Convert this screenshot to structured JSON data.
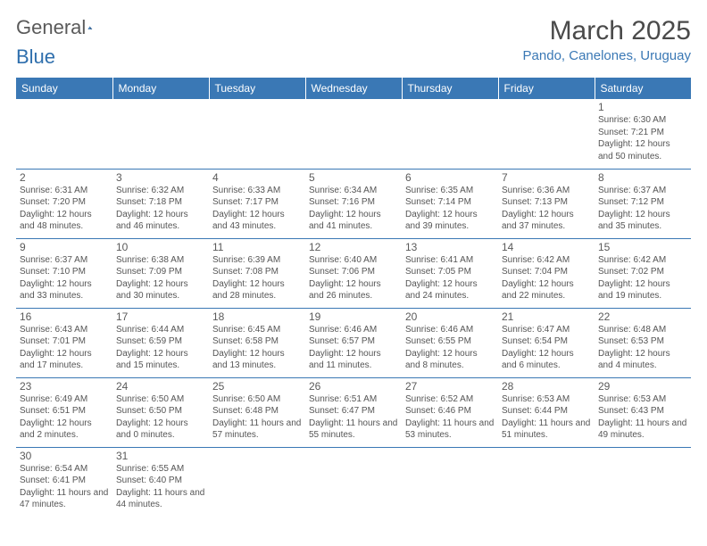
{
  "brand": {
    "part1": "General",
    "part2": "Blue"
  },
  "colors": {
    "header_bg": "#3a78b5",
    "header_text": "#ffffff",
    "accent": "#3a78b5",
    "body_text": "#555555",
    "title_text": "#4a4a4a",
    "logo_gray": "#5a5a5a",
    "logo_blue": "#2f6fad"
  },
  "title": "March 2025",
  "location": "Pando, Canelones, Uruguay",
  "weekdays": [
    "Sunday",
    "Monday",
    "Tuesday",
    "Wednesday",
    "Thursday",
    "Friday",
    "Saturday"
  ],
  "weeks": [
    [
      null,
      null,
      null,
      null,
      null,
      null,
      {
        "n": "1",
        "sunrise": "6:30 AM",
        "sunset": "7:21 PM",
        "daylight": "12 hours and 50 minutes."
      }
    ],
    [
      {
        "n": "2",
        "sunrise": "6:31 AM",
        "sunset": "7:20 PM",
        "daylight": "12 hours and 48 minutes."
      },
      {
        "n": "3",
        "sunrise": "6:32 AM",
        "sunset": "7:18 PM",
        "daylight": "12 hours and 46 minutes."
      },
      {
        "n": "4",
        "sunrise": "6:33 AM",
        "sunset": "7:17 PM",
        "daylight": "12 hours and 43 minutes."
      },
      {
        "n": "5",
        "sunrise": "6:34 AM",
        "sunset": "7:16 PM",
        "daylight": "12 hours and 41 minutes."
      },
      {
        "n": "6",
        "sunrise": "6:35 AM",
        "sunset": "7:14 PM",
        "daylight": "12 hours and 39 minutes."
      },
      {
        "n": "7",
        "sunrise": "6:36 AM",
        "sunset": "7:13 PM",
        "daylight": "12 hours and 37 minutes."
      },
      {
        "n": "8",
        "sunrise": "6:37 AM",
        "sunset": "7:12 PM",
        "daylight": "12 hours and 35 minutes."
      }
    ],
    [
      {
        "n": "9",
        "sunrise": "6:37 AM",
        "sunset": "7:10 PM",
        "daylight": "12 hours and 33 minutes."
      },
      {
        "n": "10",
        "sunrise": "6:38 AM",
        "sunset": "7:09 PM",
        "daylight": "12 hours and 30 minutes."
      },
      {
        "n": "11",
        "sunrise": "6:39 AM",
        "sunset": "7:08 PM",
        "daylight": "12 hours and 28 minutes."
      },
      {
        "n": "12",
        "sunrise": "6:40 AM",
        "sunset": "7:06 PM",
        "daylight": "12 hours and 26 minutes."
      },
      {
        "n": "13",
        "sunrise": "6:41 AM",
        "sunset": "7:05 PM",
        "daylight": "12 hours and 24 minutes."
      },
      {
        "n": "14",
        "sunrise": "6:42 AM",
        "sunset": "7:04 PM",
        "daylight": "12 hours and 22 minutes."
      },
      {
        "n": "15",
        "sunrise": "6:42 AM",
        "sunset": "7:02 PM",
        "daylight": "12 hours and 19 minutes."
      }
    ],
    [
      {
        "n": "16",
        "sunrise": "6:43 AM",
        "sunset": "7:01 PM",
        "daylight": "12 hours and 17 minutes."
      },
      {
        "n": "17",
        "sunrise": "6:44 AM",
        "sunset": "6:59 PM",
        "daylight": "12 hours and 15 minutes."
      },
      {
        "n": "18",
        "sunrise": "6:45 AM",
        "sunset": "6:58 PM",
        "daylight": "12 hours and 13 minutes."
      },
      {
        "n": "19",
        "sunrise": "6:46 AM",
        "sunset": "6:57 PM",
        "daylight": "12 hours and 11 minutes."
      },
      {
        "n": "20",
        "sunrise": "6:46 AM",
        "sunset": "6:55 PM",
        "daylight": "12 hours and 8 minutes."
      },
      {
        "n": "21",
        "sunrise": "6:47 AM",
        "sunset": "6:54 PM",
        "daylight": "12 hours and 6 minutes."
      },
      {
        "n": "22",
        "sunrise": "6:48 AM",
        "sunset": "6:53 PM",
        "daylight": "12 hours and 4 minutes."
      }
    ],
    [
      {
        "n": "23",
        "sunrise": "6:49 AM",
        "sunset": "6:51 PM",
        "daylight": "12 hours and 2 minutes."
      },
      {
        "n": "24",
        "sunrise": "6:50 AM",
        "sunset": "6:50 PM",
        "daylight": "12 hours and 0 minutes."
      },
      {
        "n": "25",
        "sunrise": "6:50 AM",
        "sunset": "6:48 PM",
        "daylight": "11 hours and 57 minutes."
      },
      {
        "n": "26",
        "sunrise": "6:51 AM",
        "sunset": "6:47 PM",
        "daylight": "11 hours and 55 minutes."
      },
      {
        "n": "27",
        "sunrise": "6:52 AM",
        "sunset": "6:46 PM",
        "daylight": "11 hours and 53 minutes."
      },
      {
        "n": "28",
        "sunrise": "6:53 AM",
        "sunset": "6:44 PM",
        "daylight": "11 hours and 51 minutes."
      },
      {
        "n": "29",
        "sunrise": "6:53 AM",
        "sunset": "6:43 PM",
        "daylight": "11 hours and 49 minutes."
      }
    ],
    [
      {
        "n": "30",
        "sunrise": "6:54 AM",
        "sunset": "6:41 PM",
        "daylight": "11 hours and 47 minutes."
      },
      {
        "n": "31",
        "sunrise": "6:55 AM",
        "sunset": "6:40 PM",
        "daylight": "11 hours and 44 minutes."
      },
      null,
      null,
      null,
      null,
      null
    ]
  ],
  "labels": {
    "sunrise": "Sunrise:",
    "sunset": "Sunset:",
    "daylight": "Daylight:"
  }
}
